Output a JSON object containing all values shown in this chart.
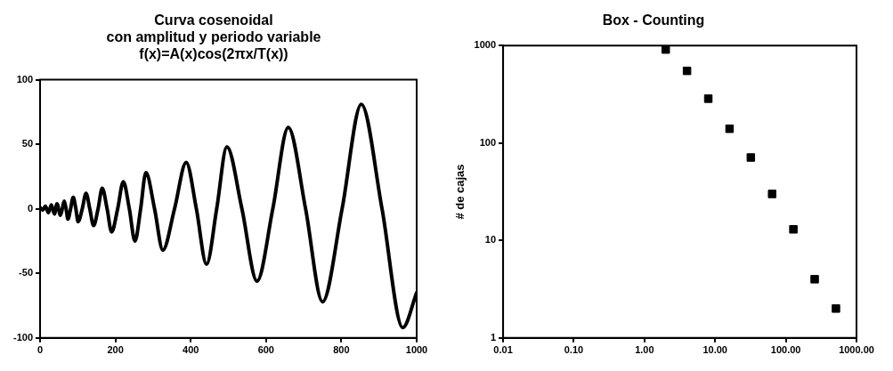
{
  "chart_data": [
    {
      "type": "line",
      "title": [
        "Curva cosenoidal",
        "con amplitud y periodo variable",
        "f(x)=A(x)cos(2πx/T(x))"
      ],
      "x": [
        0,
        7,
        14,
        22,
        30,
        38,
        45,
        54,
        59,
        64,
        69,
        74,
        81,
        88,
        95,
        101,
        112,
        122,
        132,
        142,
        154,
        165,
        178,
        190,
        206,
        221,
        237,
        252,
        267,
        281,
        304,
        326,
        357,
        388,
        415,
        442,
        469,
        496,
        536,
        576,
        618,
        659,
        705,
        750,
        802,
        853,
        908,
        963,
        1000
      ],
      "series": [
        {
          "color": "#000000",
          "values": [
            1,
            -1,
            2,
            -3,
            3,
            -4,
            4,
            -5,
            0,
            6,
            0,
            -8,
            0,
            9,
            0,
            -10,
            0,
            12,
            0,
            -13,
            0,
            16,
            0,
            -18,
            0,
            21,
            0,
            -25,
            0,
            28,
            0,
            -32,
            0,
            36,
            0,
            -43,
            0,
            48,
            0,
            -56,
            0,
            63,
            0,
            -72,
            0,
            81,
            0,
            -92,
            -65
          ]
        }
      ],
      "xlim": [
        0,
        1000
      ],
      "xticks": [
        0,
        200,
        400,
        600,
        800,
        1000
      ],
      "ylim": [
        -100,
        100
      ],
      "yticks": [
        -100,
        -50,
        0,
        50,
        100
      ],
      "line_style": "solid",
      "marker": "none"
    },
    {
      "type": "scatter",
      "title": "Box - Counting",
      "ylabel": "# de cajas",
      "log": "xy",
      "x": [
        2,
        4,
        8,
        16,
        32,
        64,
        128,
        256,
        512
      ],
      "series": [
        {
          "color": "#000000",
          "values": [
            910,
            550,
            285,
            140,
            71,
            30,
            13,
            4,
            2
          ]
        }
      ],
      "xlim": [
        0.01,
        1000
      ],
      "xticks": [
        {
          "value": 0.01,
          "label": "0.01"
        },
        {
          "value": 0.1,
          "label": "0.10"
        },
        {
          "value": 1,
          "label": "1.00"
        },
        {
          "value": 10,
          "label": "10.00"
        },
        {
          "value": 100,
          "label": "100.00"
        },
        {
          "value": 1000,
          "label": "1000.00"
        }
      ],
      "ylim": [
        1,
        1000
      ],
      "yticks": [
        1,
        10,
        100,
        1000
      ],
      "marker": "square"
    }
  ]
}
